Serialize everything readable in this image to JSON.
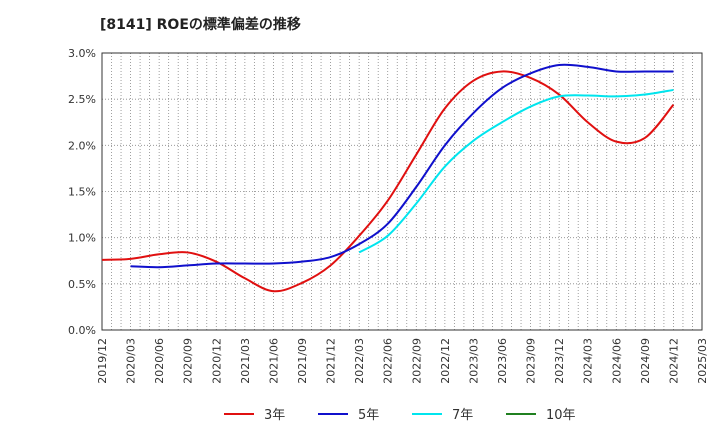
{
  "chart_data": {
    "type": "line",
    "title": "[8141]  ROEの標準偏差の推移",
    "xlabel": "",
    "ylabel": "",
    "ylim": [
      0,
      3.0
    ],
    "yticks": [
      0,
      0.5,
      1.0,
      1.5,
      2.0,
      2.5,
      3.0
    ],
    "ytick_labels": [
      "0.0%",
      "0.5%",
      "1.0%",
      "1.5%",
      "2.0%",
      "2.5%",
      "3.0%"
    ],
    "categories": [
      "2019/12",
      "2020/03",
      "2020/06",
      "2020/09",
      "2020/12",
      "2021/03",
      "2021/06",
      "2021/09",
      "2021/12",
      "2022/03",
      "2022/06",
      "2022/09",
      "2022/12",
      "2023/03",
      "2023/06",
      "2023/09",
      "2023/12",
      "2024/03",
      "2024/06",
      "2024/09",
      "2024/12",
      "2025/03"
    ],
    "grid": true,
    "legend_position": "bottom",
    "series": [
      {
        "name": "3年",
        "color": "#e01010",
        "values": [
          0.76,
          0.77,
          0.82,
          0.84,
          0.74,
          0.56,
          0.42,
          0.51,
          0.7,
          1.02,
          1.4,
          1.9,
          2.4,
          2.7,
          2.8,
          2.73,
          2.55,
          2.25,
          2.04,
          2.08,
          2.44,
          null
        ]
      },
      {
        "name": "5年",
        "color": "#1010cc",
        "values": [
          null,
          0.69,
          0.68,
          0.7,
          0.72,
          0.72,
          0.72,
          0.74,
          0.79,
          0.93,
          1.15,
          1.55,
          2.0,
          2.35,
          2.62,
          2.78,
          2.87,
          2.85,
          2.8,
          2.8,
          2.8,
          null
        ]
      },
      {
        "name": "7年",
        "color": "#00e5ee",
        "values": [
          null,
          null,
          null,
          null,
          null,
          null,
          null,
          null,
          null,
          0.84,
          1.02,
          1.37,
          1.77,
          2.05,
          2.25,
          2.42,
          2.53,
          2.54,
          2.53,
          2.55,
          2.6,
          null
        ]
      },
      {
        "name": "10年",
        "color": "#208020",
        "values": [
          null,
          null,
          null,
          null,
          null,
          null,
          null,
          null,
          null,
          null,
          null,
          null,
          null,
          null,
          null,
          null,
          null,
          null,
          null,
          null,
          null,
          null
        ]
      }
    ]
  }
}
